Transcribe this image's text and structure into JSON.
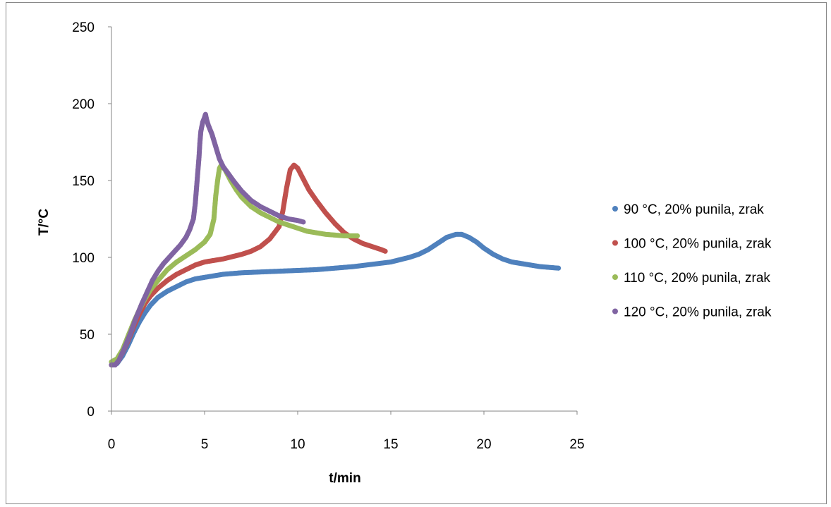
{
  "chart_data": {
    "type": "scatter",
    "title": "",
    "xlabel": "t/min",
    "ylabel": "T/°C",
    "xlim": [
      0,
      25
    ],
    "ylim": [
      0,
      250
    ],
    "xticks": [
      0,
      5,
      10,
      15,
      20,
      25
    ],
    "yticks": [
      0,
      50,
      100,
      150,
      200,
      250
    ],
    "grid": false,
    "legend_position": "right",
    "series": [
      {
        "name": "90 °C, 20% punila, zrak",
        "color": "#4f81bd",
        "points": [
          [
            0.0,
            30
          ],
          [
            0.3,
            31
          ],
          [
            0.6,
            36
          ],
          [
            0.9,
            43
          ],
          [
            1.2,
            51
          ],
          [
            1.5,
            58
          ],
          [
            1.8,
            64
          ],
          [
            2.1,
            69
          ],
          [
            2.5,
            74
          ],
          [
            3.0,
            78
          ],
          [
            3.5,
            81
          ],
          [
            4.0,
            84
          ],
          [
            4.5,
            86
          ],
          [
            5.0,
            87
          ],
          [
            6.0,
            89
          ],
          [
            7.0,
            90
          ],
          [
            8.0,
            90.5
          ],
          [
            9.0,
            91
          ],
          [
            10.0,
            91.5
          ],
          [
            11.0,
            92
          ],
          [
            12.0,
            93
          ],
          [
            13.0,
            94
          ],
          [
            14.0,
            95.5
          ],
          [
            15.0,
            97
          ],
          [
            16.0,
            100
          ],
          [
            16.5,
            102
          ],
          [
            17.0,
            105
          ],
          [
            17.5,
            109
          ],
          [
            18.0,
            113
          ],
          [
            18.5,
            115
          ],
          [
            18.8,
            115
          ],
          [
            19.2,
            113
          ],
          [
            19.6,
            110
          ],
          [
            20.0,
            106
          ],
          [
            20.5,
            102
          ],
          [
            21.0,
            99
          ],
          [
            21.5,
            97
          ],
          [
            22.0,
            96
          ],
          [
            22.5,
            95
          ],
          [
            23.0,
            94
          ],
          [
            23.5,
            93.5
          ],
          [
            24.0,
            93
          ]
        ]
      },
      {
        "name": "100 °C, 20% punila, zrak",
        "color": "#c0504d",
        "points": [
          [
            0.0,
            30
          ],
          [
            0.3,
            32
          ],
          [
            0.6,
            38
          ],
          [
            0.9,
            46
          ],
          [
            1.2,
            55
          ],
          [
            1.5,
            63
          ],
          [
            1.8,
            70
          ],
          [
            2.1,
            75
          ],
          [
            2.5,
            80
          ],
          [
            3.0,
            85
          ],
          [
            3.5,
            89
          ],
          [
            4.0,
            92
          ],
          [
            4.5,
            95
          ],
          [
            5.0,
            97
          ],
          [
            6.0,
            99
          ],
          [
            7.0,
            102
          ],
          [
            7.5,
            104
          ],
          [
            8.0,
            107
          ],
          [
            8.5,
            112
          ],
          [
            9.0,
            120
          ],
          [
            9.2,
            130
          ],
          [
            9.4,
            145
          ],
          [
            9.6,
            157
          ],
          [
            9.8,
            160
          ],
          [
            10.0,
            158
          ],
          [
            10.3,
            151
          ],
          [
            10.6,
            144
          ],
          [
            11.0,
            137
          ],
          [
            11.5,
            129
          ],
          [
            12.0,
            122
          ],
          [
            12.5,
            116
          ],
          [
            13.0,
            112
          ],
          [
            13.5,
            109
          ],
          [
            14.0,
            107
          ],
          [
            14.5,
            105
          ],
          [
            14.7,
            104
          ]
        ]
      },
      {
        "name": "110 °C, 20% punila, zrak",
        "color": "#9bbb59",
        "points": [
          [
            0.0,
            32
          ],
          [
            0.3,
            34
          ],
          [
            0.6,
            40
          ],
          [
            0.9,
            49
          ],
          [
            1.2,
            58
          ],
          [
            1.5,
            66
          ],
          [
            1.8,
            73
          ],
          [
            2.1,
            79
          ],
          [
            2.5,
            85
          ],
          [
            3.0,
            92
          ],
          [
            3.5,
            97
          ],
          [
            4.0,
            101
          ],
          [
            4.5,
            105
          ],
          [
            5.0,
            110
          ],
          [
            5.3,
            115
          ],
          [
            5.5,
            125
          ],
          [
            5.6,
            140
          ],
          [
            5.7,
            150
          ],
          [
            5.8,
            158
          ],
          [
            5.9,
            160
          ],
          [
            6.1,
            157
          ],
          [
            6.4,
            150
          ],
          [
            6.7,
            144
          ],
          [
            7.0,
            139
          ],
          [
            7.5,
            133
          ],
          [
            8.0,
            129
          ],
          [
            8.5,
            126
          ],
          [
            9.0,
            123
          ],
          [
            9.5,
            121
          ],
          [
            10.0,
            119
          ],
          [
            10.5,
            117
          ],
          [
            11.0,
            116
          ],
          [
            11.5,
            115
          ],
          [
            12.0,
            114.5
          ],
          [
            12.5,
            114
          ],
          [
            13.0,
            114
          ],
          [
            13.2,
            114
          ]
        ]
      },
      {
        "name": "120 °C, 20% punila, zrak",
        "color": "#8064a2",
        "points": [
          [
            0.0,
            30
          ],
          [
            0.2,
            30
          ],
          [
            0.4,
            33
          ],
          [
            0.7,
            41
          ],
          [
            1.0,
            50
          ],
          [
            1.3,
            60
          ],
          [
            1.6,
            69
          ],
          [
            1.9,
            77
          ],
          [
            2.2,
            85
          ],
          [
            2.5,
            91
          ],
          [
            2.8,
            96
          ],
          [
            3.1,
            100
          ],
          [
            3.4,
            104
          ],
          [
            3.7,
            108
          ],
          [
            4.0,
            113
          ],
          [
            4.2,
            118
          ],
          [
            4.4,
            125
          ],
          [
            4.5,
            135
          ],
          [
            4.6,
            150
          ],
          [
            4.7,
            165
          ],
          [
            4.75,
            175
          ],
          [
            4.8,
            182
          ],
          [
            4.9,
            188
          ],
          [
            5.0,
            191
          ],
          [
            5.05,
            193
          ],
          [
            5.1,
            190
          ],
          [
            5.2,
            186
          ],
          [
            5.3,
            183
          ],
          [
            5.4,
            180
          ],
          [
            5.5,
            176
          ],
          [
            5.6,
            172
          ],
          [
            5.7,
            168
          ],
          [
            5.8,
            164
          ],
          [
            6.0,
            159
          ],
          [
            6.3,
            154
          ],
          [
            6.6,
            149
          ],
          [
            7.0,
            143
          ],
          [
            7.5,
            137
          ],
          [
            8.0,
            133
          ],
          [
            8.5,
            130
          ],
          [
            9.0,
            127
          ],
          [
            9.5,
            125
          ],
          [
            10.0,
            124
          ],
          [
            10.3,
            123
          ]
        ]
      }
    ]
  }
}
